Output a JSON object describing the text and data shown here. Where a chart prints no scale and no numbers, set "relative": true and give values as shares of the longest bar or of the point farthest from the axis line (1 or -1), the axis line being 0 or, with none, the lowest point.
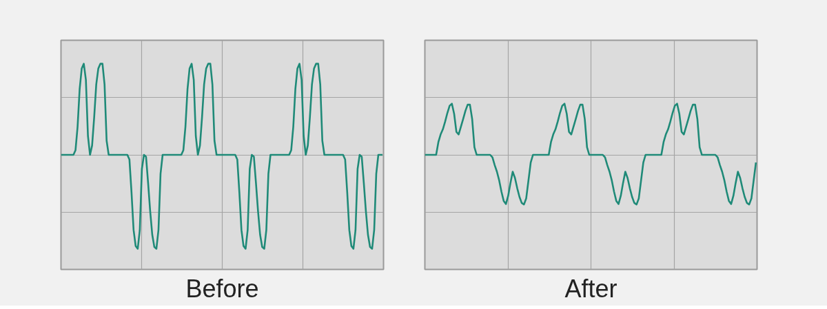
{
  "chart_data": [
    {
      "type": "line",
      "title": "Before",
      "relative": true,
      "grid": true,
      "categories": [
        null,
        null,
        null,
        null,
        null,
        null,
        null,
        null,
        null,
        null,
        null,
        null,
        null,
        null,
        null,
        null,
        null,
        null,
        null,
        null,
        null,
        null,
        null,
        null,
        null,
        null,
        null,
        null,
        null,
        null,
        null,
        null,
        null,
        null,
        null,
        null,
        null,
        null,
        null,
        null,
        null,
        null,
        null,
        null,
        null,
        null,
        null,
        null,
        null,
        null,
        null,
        null,
        null,
        null,
        null,
        null,
        null,
        null,
        null,
        null,
        null,
        null,
        null,
        null,
        null,
        null,
        null,
        null,
        null,
        null,
        null,
        null,
        null,
        null,
        null,
        null,
        null,
        null,
        null,
        null,
        null,
        null,
        null,
        null,
        null,
        null,
        null,
        null,
        null,
        null,
        null,
        null,
        null,
        null,
        null,
        null,
        null,
        null,
        null,
        null,
        null,
        null,
        null,
        null,
        null,
        null,
        null,
        null,
        null,
        null,
        null,
        null,
        null,
        null,
        null,
        null,
        null,
        null,
        null,
        null,
        null,
        null,
        null,
        null,
        null,
        null,
        null,
        null,
        null,
        null,
        null,
        null,
        null,
        null,
        null,
        null,
        null,
        null,
        null,
        null,
        null,
        null,
        null,
        null,
        null,
        null,
        null,
        null,
        null,
        null,
        null,
        null,
        null,
        null,
        null,
        null
      ],
      "series": [
        {
          "color": "#1f8a78",
          "values": [
            0,
            0,
            0,
            0,
            0,
            0,
            0,
            0.05,
            0.3,
            0.7,
            0.92,
            0.97,
            0.8,
            0.2,
            0,
            0.1,
            0.4,
            0.75,
            0.92,
            0.97,
            0.97,
            0.75,
            0.15,
            0,
            0,
            0,
            0,
            0,
            0,
            0,
            0,
            0,
            0,
            -0.05,
            -0.4,
            -0.8,
            -0.97,
            -1,
            -0.8,
            -0.15,
            0,
            -0.02,
            -0.3,
            -0.6,
            -0.85,
            -0.98,
            -1,
            -0.8,
            -0.2,
            0,
            0,
            0,
            0,
            0,
            0,
            0,
            0,
            0,
            0,
            0.05,
            0.3,
            0.7,
            0.92,
            0.97,
            0.8,
            0.2,
            0,
            0.1,
            0.4,
            0.75,
            0.92,
            0.97,
            0.97,
            0.75,
            0.15,
            0,
            0,
            0,
            0,
            0,
            0,
            0,
            0,
            0,
            0,
            -0.05,
            -0.4,
            -0.8,
            -0.97,
            -1,
            -0.8,
            -0.15,
            0,
            -0.02,
            -0.3,
            -0.6,
            -0.85,
            -0.98,
            -1,
            -0.8,
            -0.2,
            0,
            0,
            0,
            0,
            0,
            0,
            0,
            0,
            0,
            0,
            0.05,
            0.3,
            0.7,
            0.92,
            0.97,
            0.8,
            0.2,
            0,
            0.1,
            0.4,
            0.75,
            0.92,
            0.97,
            0.97,
            0.75,
            0.15,
            0,
            0,
            0,
            0,
            0,
            0,
            0,
            0,
            0,
            0,
            -0.05,
            -0.4,
            -0.8,
            -0.97,
            -1,
            -0.8,
            -0.15,
            0,
            -0.02,
            -0.3,
            -0.6,
            -0.85,
            -0.98,
            -1,
            -0.8,
            -0.2,
            0,
            0,
            0
          ]
        }
      ]
    },
    {
      "type": "line",
      "title": "After",
      "relative": true,
      "grid": true,
      "categories": [
        null,
        null,
        null,
        null,
        null,
        null,
        null,
        null,
        null,
        null,
        null,
        null,
        null,
        null,
        null,
        null,
        null,
        null,
        null,
        null,
        null,
        null,
        null,
        null,
        null,
        null,
        null,
        null,
        null,
        null,
        null,
        null,
        null,
        null,
        null,
        null,
        null,
        null,
        null,
        null,
        null,
        null,
        null,
        null,
        null,
        null,
        null,
        null,
        null,
        null,
        null,
        null,
        null,
        null,
        null,
        null,
        null,
        null,
        null,
        null,
        null,
        null,
        null,
        null,
        null,
        null,
        null,
        null,
        null,
        null,
        null,
        null,
        null,
        null,
        null,
        null,
        null,
        null,
        null,
        null,
        null,
        null,
        null,
        null,
        null,
        null,
        null,
        null,
        null,
        null,
        null,
        null,
        null,
        null,
        null,
        null,
        null,
        null,
        null,
        null,
        null,
        null,
        null,
        null,
        null,
        null,
        null,
        null,
        null,
        null,
        null,
        null,
        null,
        null,
        null,
        null,
        null,
        null,
        null,
        null,
        null,
        null,
        null,
        null,
        null,
        null,
        null,
        null,
        null,
        null,
        null,
        null,
        null,
        null,
        null,
        null,
        null,
        null,
        null,
        null,
        null,
        null,
        null,
        null,
        null,
        null,
        null,
        null
      ],
      "series": [
        {
          "color": "#1f8a78",
          "values": [
            0,
            0,
            0,
            0,
            0,
            0,
            0.25,
            0.4,
            0.5,
            0.65,
            0.82,
            0.96,
            1,
            0.8,
            0.45,
            0.4,
            0.55,
            0.7,
            0.86,
            0.98,
            0.98,
            0.7,
            0.15,
            0,
            0,
            0,
            0,
            0,
            0,
            0,
            -0.05,
            -0.2,
            -0.33,
            -0.5,
            -0.72,
            -0.9,
            -0.96,
            -0.8,
            -0.55,
            -0.33,
            -0.45,
            -0.65,
            -0.82,
            -0.94,
            -0.97,
            -0.85,
            -0.5,
            -0.15,
            0,
            0,
            0,
            0,
            0,
            0,
            0,
            0,
            0.25,
            0.4,
            0.5,
            0.65,
            0.82,
            0.96,
            1,
            0.8,
            0.45,
            0.4,
            0.55,
            0.7,
            0.86,
            0.98,
            0.98,
            0.7,
            0.15,
            0,
            0,
            0,
            0,
            0,
            0,
            0,
            -0.05,
            -0.2,
            -0.33,
            -0.5,
            -0.72,
            -0.9,
            -0.96,
            -0.8,
            -0.55,
            -0.33,
            -0.45,
            -0.65,
            -0.82,
            -0.94,
            -0.97,
            -0.85,
            -0.5,
            -0.15,
            0,
            0,
            0,
            0,
            0,
            0,
            0,
            0,
            0.25,
            0.4,
            0.5,
            0.65,
            0.82,
            0.96,
            1,
            0.8,
            0.45,
            0.4,
            0.55,
            0.7,
            0.86,
            0.98,
            0.98,
            0.7,
            0.15,
            0,
            0,
            0,
            0,
            0,
            0,
            0,
            -0.05,
            -0.2,
            -0.33,
            -0.5,
            -0.72,
            -0.9,
            -0.96,
            -0.8,
            -0.55,
            -0.33,
            -0.45,
            -0.65,
            -0.82,
            -0.94,
            -0.97,
            -0.85,
            -0.5,
            -0.15
          ]
        }
      ]
    }
  ]
}
